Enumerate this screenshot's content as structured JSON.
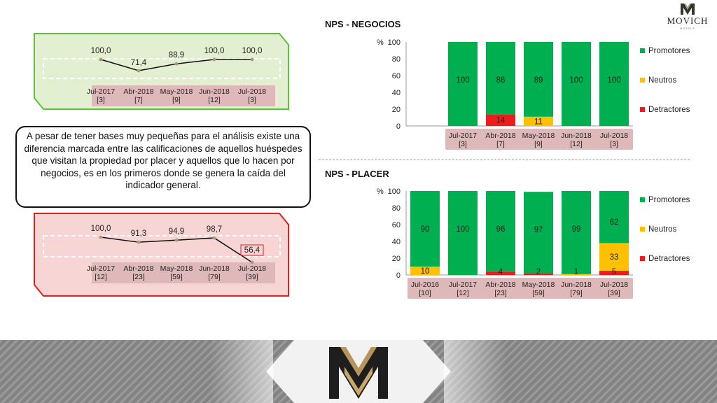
{
  "logo": {
    "name": "MOVICH",
    "sub": "HOTELS"
  },
  "negocios": {
    "title": "NPS - NEGOCIOS",
    "trend": {
      "values": [
        "100,0",
        "71,4",
        "88,9",
        "100,0",
        "100,0"
      ],
      "numeric": [
        100.0,
        71.4,
        88.9,
        100.0,
        100.0
      ],
      "periods": [
        "Jul-2017",
        "Abr-2018",
        "May-2018",
        "Jun-2018",
        "Jul-2018"
      ],
      "bases": [
        "[3]",
        "[7]",
        "[9]",
        "[12]",
        "[3]"
      ]
    },
    "chart_data": {
      "type": "bar",
      "stacked": true,
      "ylabel": "%",
      "ylim": [
        0,
        100
      ],
      "yticks": [
        0,
        20,
        40,
        60,
        80,
        100
      ],
      "categories": [
        "",
        "Jul-2017",
        "Abr-2018",
        "May-2018",
        "Jun-2018",
        "Jul-2018"
      ],
      "bases": [
        "",
        "[3]",
        "[7]",
        "[9]",
        "[12]",
        "[3]"
      ],
      "series": [
        {
          "name": "Detractores",
          "color": "#ee1c1c",
          "values": [
            0,
            0,
            14,
            0,
            0,
            0
          ],
          "labels": [
            "",
            "",
            "14",
            "",
            "",
            ""
          ]
        },
        {
          "name": "Neutros",
          "color": "#ffc000",
          "values": [
            0,
            0,
            0,
            11,
            0,
            0
          ],
          "labels": [
            "",
            "",
            "",
            "11",
            "",
            ""
          ]
        },
        {
          "name": "Promotores",
          "color": "#00b050",
          "values": [
            0,
            100,
            86,
            89,
            100,
            100
          ],
          "labels": [
            "",
            "100",
            "86",
            "89",
            "100",
            "100"
          ]
        }
      ],
      "legend": [
        "Promotores",
        "Neutros",
        "Detractores"
      ],
      "legend_position": "right"
    }
  },
  "placer": {
    "title": "NPS - PLACER",
    "trend": {
      "values": [
        "100,0",
        "91,3",
        "94,9",
        "98,7",
        "56,4"
      ],
      "numeric": [
        100.0,
        91.3,
        94.9,
        98.7,
        56.4
      ],
      "periods": [
        "Jul-2017",
        "Abr-2018",
        "May-2018",
        "Jun-2018",
        "Jul-2018"
      ],
      "bases": [
        "[12]",
        "[23]",
        "[59]",
        "[79]",
        "[39]"
      ]
    },
    "chart_data": {
      "type": "bar",
      "stacked": true,
      "ylabel": "%",
      "ylim": [
        0,
        100
      ],
      "yticks": [
        0,
        20,
        40,
        60,
        80,
        100
      ],
      "categories": [
        "Jul-2016",
        "Jul-2017",
        "Abr-2018",
        "May-2018",
        "Jun-2018",
        "Jul-2018"
      ],
      "bases": [
        "[10]",
        "[12]",
        "[23]",
        "[59]",
        "[79]",
        "[39]"
      ],
      "series": [
        {
          "name": "Detractores",
          "color": "#ee1c1c",
          "values": [
            0,
            0,
            4,
            2,
            0,
            5
          ],
          "labels": [
            "",
            "",
            "4",
            "2",
            "",
            "5"
          ]
        },
        {
          "name": "Neutros",
          "color": "#ffc000",
          "values": [
            10,
            0,
            0,
            0,
            1,
            33
          ],
          "labels": [
            "10",
            "",
            "",
            "",
            "1",
            "33"
          ]
        },
        {
          "name": "Promotores",
          "color": "#00b050",
          "values": [
            90,
            100,
            96,
            97,
            99,
            62
          ],
          "labels": [
            "90",
            "100",
            "96",
            "97",
            "99",
            "62"
          ]
        }
      ],
      "legend": [
        "Promotores",
        "Neutros",
        "Detractores"
      ],
      "legend_position": "right"
    }
  },
  "callout": {
    "text": "A pesar de tener bases muy pequeñas para el análisis existe una diferencia marcada entre las calificaciones de aquellos huéspedes que visitan la propiedad por placer y aquellos que lo hacen por negocios, es en los primeros donde se genera la caída del indicador general."
  },
  "colors": {
    "promotores": "#00b050",
    "neutros": "#ffc000",
    "detractores": "#ee1c1c",
    "label_band": "#dfb8ba",
    "panel_green": "#e2efd0",
    "panel_red": "#f7d5d5"
  }
}
